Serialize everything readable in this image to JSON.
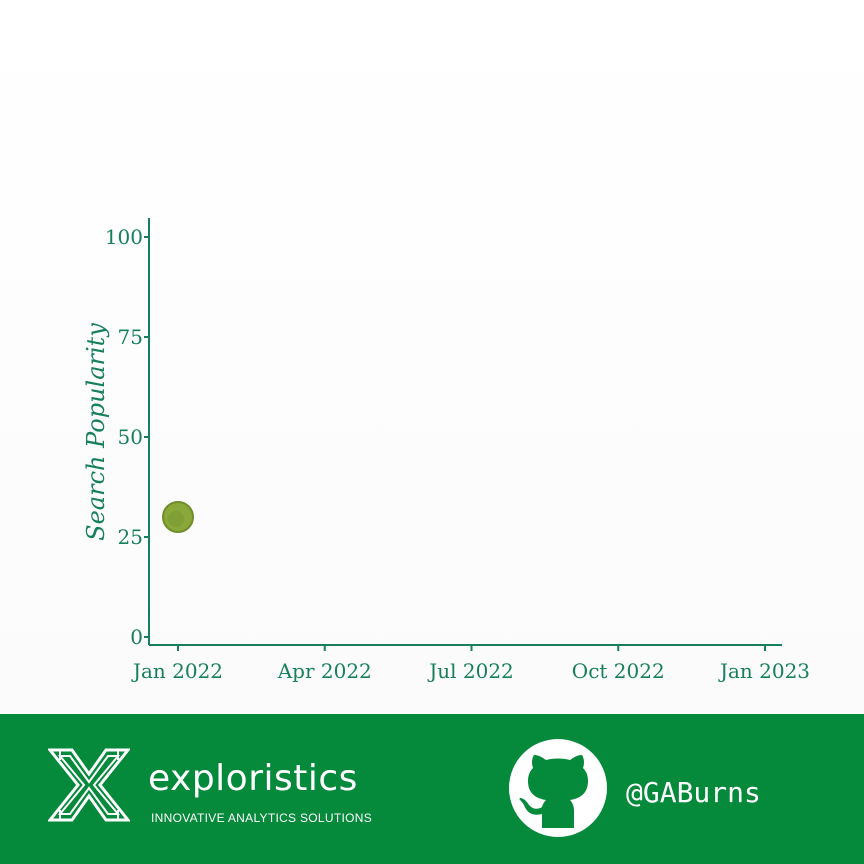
{
  "chart_data": {
    "type": "scatter",
    "xlabel": "",
    "ylabel": "Search Popularity",
    "x_tick_labels": [
      "Jan 2022",
      "Apr 2022",
      "Jul 2022",
      "Oct 2022",
      "Jan 2023"
    ],
    "y_tick_labels": [
      "0",
      "25",
      "50",
      "75",
      "100"
    ],
    "ylim": [
      0,
      100
    ],
    "points": [
      {
        "x": "2022-01-01",
        "y": 30
      }
    ],
    "grid": false,
    "point_color": "#8aa83a"
  },
  "footer": {
    "brand_name": "exploristics",
    "brand_tagline": "INNOVATIVE ANALYTICS SOLUTIONS",
    "handle": "@GABurns",
    "logo_icon": "exploristics-x-logo",
    "social_icon": "github-icon",
    "background_color": "#05893a"
  }
}
